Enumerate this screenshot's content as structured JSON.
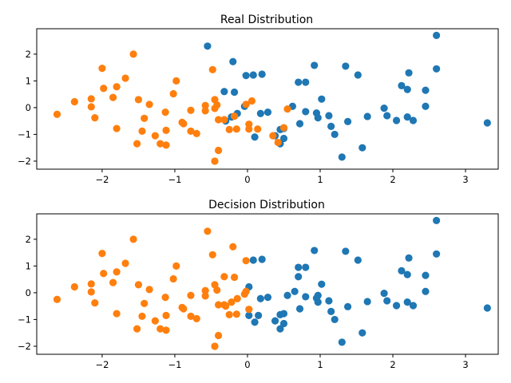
{
  "chart_data": [
    {
      "type": "scatter",
      "title": "Real Distribution",
      "xlim": [
        -2.9,
        3.45
      ],
      "ylim": [
        -2.3,
        2.95
      ],
      "xticks": [
        -2,
        -1,
        0,
        1,
        2,
        3
      ],
      "yticks": [
        -2,
        -1,
        0,
        1,
        2
      ],
      "xtick_labels": [
        "−2",
        "−1",
        "0",
        "1",
        "2",
        "3"
      ],
      "ytick_labels": [
        "−2",
        "−1",
        "0",
        "1",
        "2"
      ],
      "grid": false,
      "series": [
        {
          "color": "#1f77b4",
          "points": [
            [
              -0.55,
              2.3
            ],
            [
              2.6,
              2.7
            ],
            [
              -0.2,
              1.72
            ],
            [
              -0.02,
              1.2
            ],
            [
              0.08,
              1.22
            ],
            [
              0.2,
              1.25
            ],
            [
              0.92,
              1.58
            ],
            [
              1.35,
              1.55
            ],
            [
              1.52,
              1.22
            ],
            [
              2.22,
              1.3
            ],
            [
              2.6,
              1.45
            ],
            [
              -0.32,
              0.6
            ],
            [
              -0.18,
              0.58
            ],
            [
              0.7,
              0.95
            ],
            [
              0.8,
              0.95
            ],
            [
              2.12,
              0.82
            ],
            [
              2.2,
              0.68
            ],
            [
              2.45,
              0.65
            ],
            [
              1.02,
              0.32
            ],
            [
              0.62,
              0.05
            ],
            [
              0.8,
              -0.15
            ],
            [
              0.95,
              -0.2
            ],
            [
              1.12,
              -0.3
            ],
            [
              0.97,
              -0.38
            ],
            [
              1.88,
              -0.02
            ],
            [
              2.45,
              0.05
            ],
            [
              -0.04,
              0.05
            ],
            [
              -0.14,
              -0.22
            ],
            [
              -0.22,
              -0.35
            ],
            [
              -0.3,
              -0.5
            ],
            [
              0.18,
              -0.22
            ],
            [
              0.28,
              -0.17
            ],
            [
              1.38,
              -0.52
            ],
            [
              1.65,
              -0.33
            ],
            [
              1.92,
              -0.3
            ],
            [
              2.05,
              -0.48
            ],
            [
              2.2,
              -0.35
            ],
            [
              2.28,
              -0.48
            ],
            [
              3.3,
              -0.57
            ],
            [
              0.45,
              -0.82
            ],
            [
              0.5,
              -0.78
            ],
            [
              0.72,
              -0.6
            ],
            [
              1.15,
              -0.7
            ],
            [
              1.2,
              -1.0
            ],
            [
              0.1,
              -1.1
            ],
            [
              0.38,
              -1.05
            ],
            [
              0.45,
              -1.35
            ],
            [
              1.58,
              -1.5
            ],
            [
              1.3,
              -1.85
            ],
            [
              0.5,
              -1.15
            ]
          ]
        },
        {
          "color": "#ff7f0e",
          "points": [
            [
              -1.57,
              2.0
            ],
            [
              -2.0,
              1.47
            ],
            [
              -1.68,
              1.1
            ],
            [
              -0.48,
              1.42
            ],
            [
              -1.98,
              0.72
            ],
            [
              -1.8,
              0.78
            ],
            [
              -0.98,
              1.0
            ],
            [
              -1.02,
              0.52
            ],
            [
              -2.15,
              0.33
            ],
            [
              -2.15,
              0.03
            ],
            [
              -2.38,
              0.22
            ],
            [
              -1.85,
              0.38
            ],
            [
              -1.5,
              0.3
            ],
            [
              -1.35,
              0.12
            ],
            [
              -0.58,
              0.08
            ],
            [
              -0.45,
              0.3
            ],
            [
              -0.42,
              0.1
            ],
            [
              -0.02,
              0.12
            ],
            [
              0.06,
              0.25
            ],
            [
              -0.78,
              -0.1
            ],
            [
              -0.58,
              -0.12
            ],
            [
              -0.45,
              -0.03
            ],
            [
              -1.13,
              -0.17
            ],
            [
              -2.1,
              -0.38
            ],
            [
              -2.62,
              -0.25
            ],
            [
              -1.42,
              -0.4
            ],
            [
              -0.9,
              -0.55
            ],
            [
              -0.88,
              -0.6
            ],
            [
              -0.4,
              -0.45
            ],
            [
              -0.32,
              -0.45
            ],
            [
              -0.18,
              -0.32
            ],
            [
              0.02,
              -0.62
            ],
            [
              0.02,
              -0.8
            ],
            [
              0.14,
              -0.8
            ],
            [
              -0.25,
              -0.82
            ],
            [
              -0.15,
              -0.8
            ],
            [
              -0.78,
              -0.88
            ],
            [
              -0.7,
              -0.97
            ],
            [
              -1.45,
              -0.88
            ],
            [
              -1.27,
              -1.05
            ],
            [
              -1.12,
              -0.85
            ],
            [
              -1.8,
              -0.78
            ],
            [
              -1.52,
              -1.35
            ],
            [
              -1.2,
              -1.35
            ],
            [
              -1.12,
              -1.4
            ],
            [
              -0.4,
              -1.6
            ],
            [
              -0.45,
              -2.0
            ],
            [
              0.42,
              -1.3
            ],
            [
              0.5,
              -0.75
            ],
            [
              0.55,
              -0.05
            ],
            [
              0.35,
              -1.05
            ]
          ]
        }
      ]
    },
    {
      "type": "scatter",
      "title": "Decision Distribution",
      "xlim": [
        -2.9,
        3.45
      ],
      "ylim": [
        -2.3,
        2.95
      ],
      "xticks": [
        -2,
        -1,
        0,
        1,
        2,
        3
      ],
      "yticks": [
        -2,
        -1,
        0,
        1,
        2
      ],
      "xtick_labels": [
        "−2",
        "−1",
        "0",
        "1",
        "2",
        "3"
      ],
      "ytick_labels": [
        "−2",
        "−1",
        "0",
        "1",
        "2"
      ],
      "grid": false,
      "series": [
        {
          "color": "#1f77b4",
          "points": [
            [
              2.6,
              2.7
            ],
            [
              0.08,
              1.22
            ],
            [
              0.2,
              1.25
            ],
            [
              0.92,
              1.58
            ],
            [
              1.35,
              1.55
            ],
            [
              1.52,
              1.22
            ],
            [
              2.22,
              1.3
            ],
            [
              2.6,
              1.45
            ],
            [
              0.7,
              0.95
            ],
            [
              0.8,
              0.95
            ],
            [
              0.7,
              0.6
            ],
            [
              2.12,
              0.82
            ],
            [
              2.2,
              0.68
            ],
            [
              2.45,
              0.65
            ],
            [
              1.02,
              0.32
            ],
            [
              0.02,
              0.22
            ],
            [
              0.55,
              -0.1
            ],
            [
              0.65,
              0.05
            ],
            [
              0.8,
              -0.15
            ],
            [
              0.95,
              -0.2
            ],
            [
              0.97,
              -0.1
            ],
            [
              0.97,
              -0.35
            ],
            [
              1.12,
              -0.3
            ],
            [
              1.88,
              -0.02
            ],
            [
              2.45,
              0.05
            ],
            [
              0.18,
              -0.22
            ],
            [
              0.28,
              -0.17
            ],
            [
              1.38,
              -0.52
            ],
            [
              1.65,
              -0.33
            ],
            [
              1.92,
              -0.3
            ],
            [
              2.05,
              -0.48
            ],
            [
              2.2,
              -0.35
            ],
            [
              2.28,
              -0.48
            ],
            [
              3.3,
              -0.57
            ],
            [
              0.45,
              -0.82
            ],
            [
              0.5,
              -0.78
            ],
            [
              0.72,
              -0.6
            ],
            [
              1.15,
              -0.7
            ],
            [
              1.2,
              -1.0
            ],
            [
              0.02,
              -0.85
            ],
            [
              0.1,
              -1.1
            ],
            [
              0.38,
              -1.05
            ],
            [
              0.45,
              -1.35
            ],
            [
              0.5,
              -1.15
            ],
            [
              0.15,
              -0.85
            ],
            [
              1.58,
              -1.5
            ],
            [
              1.3,
              -1.85
            ]
          ]
        },
        {
          "color": "#ff7f0e",
          "points": [
            [
              -1.57,
              2.0
            ],
            [
              -0.55,
              2.3
            ],
            [
              -0.2,
              1.72
            ],
            [
              -2.0,
              1.47
            ],
            [
              -1.68,
              1.1
            ],
            [
              -0.48,
              1.42
            ],
            [
              -0.02,
              1.2
            ],
            [
              -1.98,
              0.72
            ],
            [
              -1.8,
              0.78
            ],
            [
              -0.98,
              1.0
            ],
            [
              -1.02,
              0.52
            ],
            [
              -0.32,
              0.6
            ],
            [
              -0.18,
              0.58
            ],
            [
              -2.15,
              0.33
            ],
            [
              -2.15,
              0.03
            ],
            [
              -2.38,
              0.22
            ],
            [
              -1.85,
              0.38
            ],
            [
              -1.5,
              0.3
            ],
            [
              -1.35,
              0.12
            ],
            [
              -0.58,
              0.08
            ],
            [
              -0.45,
              0.3
            ],
            [
              -0.42,
              0.1
            ],
            [
              -0.02,
              0.05
            ],
            [
              -0.04,
              -0.05
            ],
            [
              -0.14,
              -0.22
            ],
            [
              -0.78,
              -0.1
            ],
            [
              -0.58,
              -0.12
            ],
            [
              -1.13,
              -0.17
            ],
            [
              -2.1,
              -0.38
            ],
            [
              -2.62,
              -0.25
            ],
            [
              -1.42,
              -0.4
            ],
            [
              -0.9,
              -0.55
            ],
            [
              -0.88,
              -0.6
            ],
            [
              -0.4,
              -0.45
            ],
            [
              -0.32,
              -0.45
            ],
            [
              -0.3,
              -0.5
            ],
            [
              -0.22,
              -0.35
            ],
            [
              0.02,
              -0.62
            ],
            [
              -0.25,
              -0.82
            ],
            [
              -0.15,
              -0.8
            ],
            [
              -0.78,
              -0.88
            ],
            [
              -0.7,
              -0.97
            ],
            [
              -1.45,
              -0.88
            ],
            [
              -1.27,
              -1.05
            ],
            [
              -1.12,
              -0.85
            ],
            [
              -1.8,
              -0.78
            ],
            [
              -1.52,
              -1.35
            ],
            [
              -1.2,
              -1.35
            ],
            [
              -1.12,
              -1.4
            ],
            [
              -0.4,
              -1.6
            ],
            [
              -0.45,
              -2.0
            ]
          ]
        }
      ]
    }
  ]
}
